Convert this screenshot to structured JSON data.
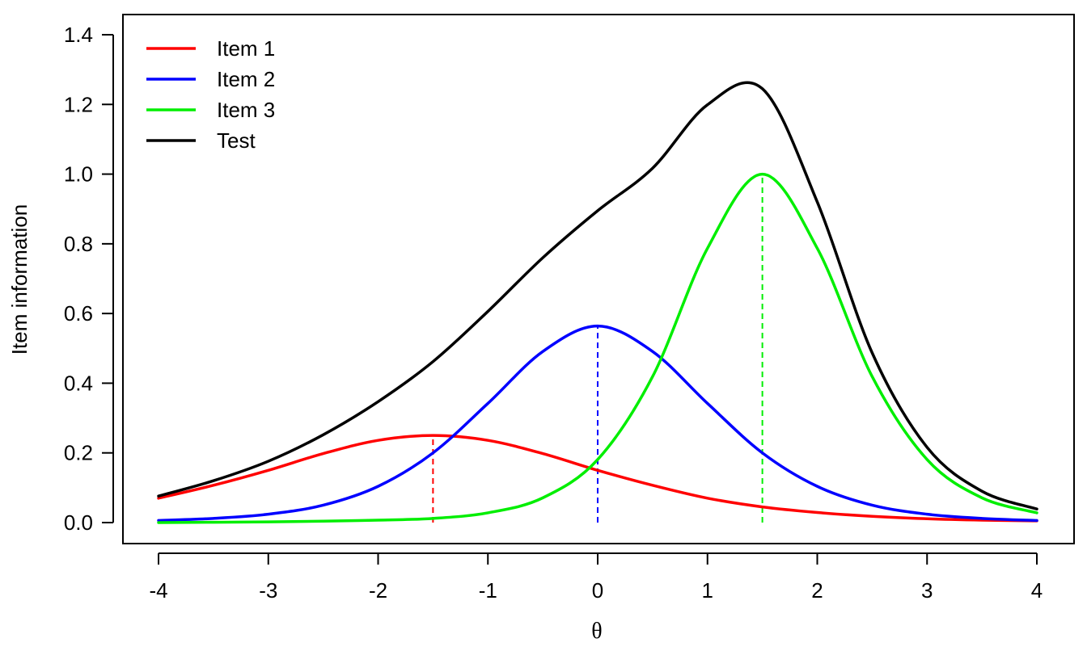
{
  "chart_data": {
    "type": "line",
    "title": "",
    "xlabel": "θ",
    "ylabel": "Item information",
    "xlim": [
      -4,
      4
    ],
    "ylim": [
      0,
      1.4
    ],
    "x_ticks": [
      "-4",
      "-3",
      "-2",
      "-1",
      "0",
      "1",
      "2",
      "3",
      "4"
    ],
    "y_ticks": [
      "0.0",
      "0.2",
      "0.4",
      "0.6",
      "0.8",
      "1.0",
      "1.2",
      "1.4"
    ],
    "grid": false,
    "legend_position": "top-left",
    "x": [
      -4,
      -3.5,
      -3,
      -2.5,
      -2,
      -1.5,
      -1,
      -0.5,
      0,
      0.5,
      1,
      1.5,
      2,
      2.5,
      3,
      3.5,
      4
    ],
    "series": [
      {
        "name": "Item 1",
        "color": "#ff0000",
        "values": [
          0.07,
          0.107,
          0.15,
          0.198,
          0.236,
          0.25,
          0.236,
          0.198,
          0.15,
          0.107,
          0.07,
          0.045,
          0.029,
          0.018,
          0.011,
          0.007,
          0.005
        ],
        "peak": {
          "x": -1.5,
          "y": 0.25
        }
      },
      {
        "name": "Item 2",
        "color": "#0000ff",
        "values": [
          0.006,
          0.012,
          0.024,
          0.05,
          0.104,
          0.2,
          0.342,
          0.491,
          0.564,
          0.491,
          0.342,
          0.2,
          0.104,
          0.05,
          0.024,
          0.012,
          0.006
        ],
        "peak": {
          "x": 0,
          "y": 0.564
        }
      },
      {
        "name": "Item 3",
        "color": "#00ee00",
        "values": [
          0.0,
          0.001,
          0.002,
          0.004,
          0.007,
          0.012,
          0.028,
          0.071,
          0.181,
          0.419,
          0.787,
          1.0,
          0.787,
          0.419,
          0.181,
          0.071,
          0.028
        ],
        "peak": {
          "x": 1.5,
          "y": 1.0
        }
      },
      {
        "name": "Test",
        "color": "#000000",
        "values": [
          0.076,
          0.12,
          0.176,
          0.252,
          0.347,
          0.462,
          0.606,
          0.76,
          0.895,
          1.017,
          1.199,
          1.245,
          0.92,
          0.487,
          0.216,
          0.09,
          0.039
        ]
      }
    ]
  }
}
